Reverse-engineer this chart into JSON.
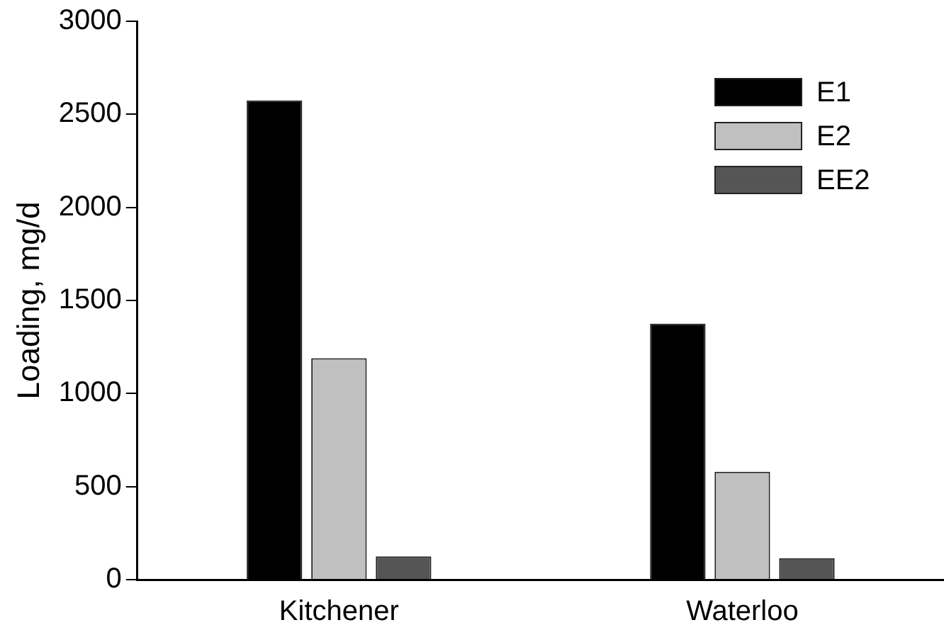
{
  "chart_data": {
    "type": "bar",
    "ylabel": "Loading, mg/d",
    "categories": [
      "Kitchener",
      "Waterloo"
    ],
    "series": [
      {
        "name": "E1",
        "color": "#000000",
        "values": [
          2575,
          1375
        ]
      },
      {
        "name": "E2",
        "color": "#c0c0c0",
        "values": [
          1190,
          580
        ]
      },
      {
        "name": "EE2",
        "color": "#555555",
        "values": [
          125,
          115
        ]
      }
    ],
    "ylim": [
      0,
      3000
    ],
    "yticks": [
      0,
      500,
      1000,
      1500,
      2000,
      2500,
      3000
    ],
    "grid": false,
    "legend": "top right"
  }
}
